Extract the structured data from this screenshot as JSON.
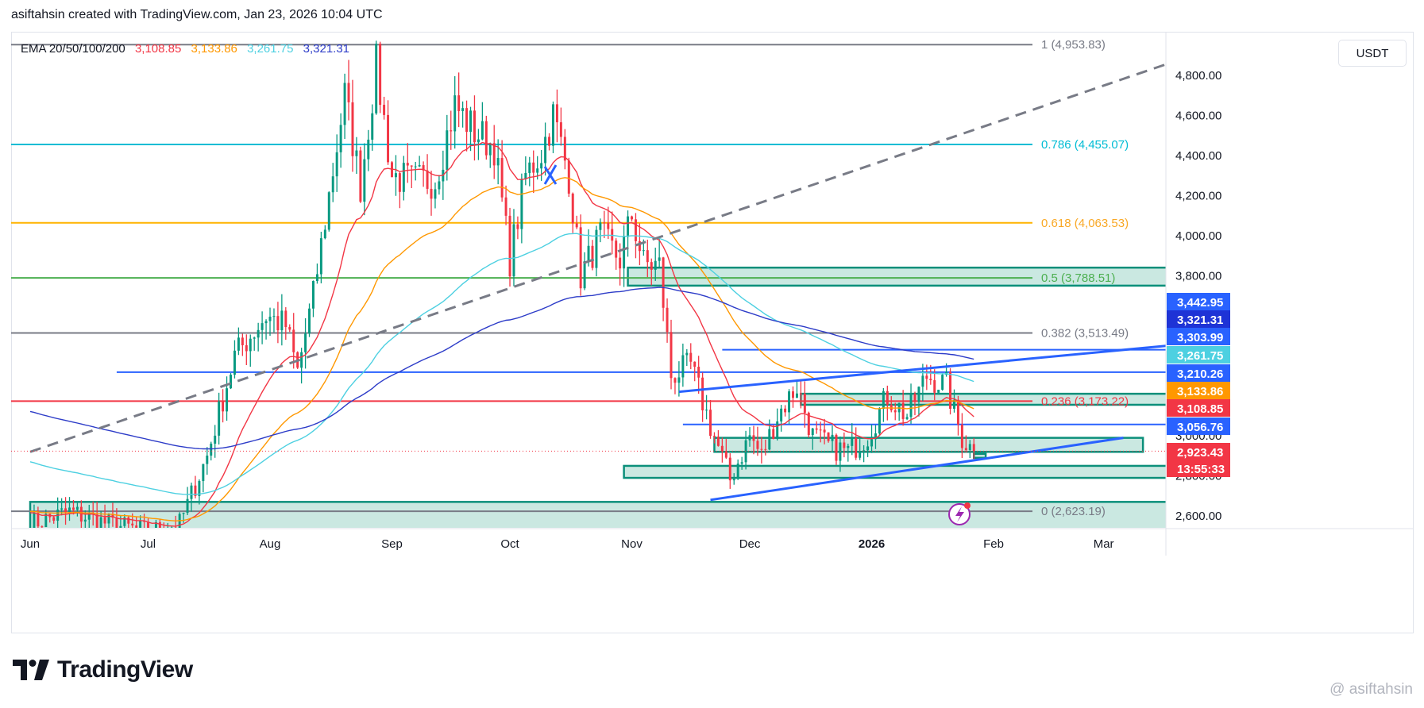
{
  "header": {
    "title": "asiftahsin created with TradingView.com, Jan 23, 2026 10:04 UTC"
  },
  "legend": {
    "label": "EMA 20/50/100/200",
    "values": [
      "3,108.85",
      "3,133.86",
      "3,261.75",
      "3,321.31"
    ],
    "colors": [
      "#f23645",
      "#ff9800",
      "#4dd0e1",
      "#2d3cc8"
    ]
  },
  "currency": "USDT",
  "logo": {
    "text": "TradingView"
  },
  "watermark": "@ asiftahsin",
  "colors": {
    "up": "#089981",
    "down": "#f23645",
    "zone_fill": "#9ed6c9",
    "zone_border": "#0b8f7a",
    "trend_blue": "#2962ff",
    "grid_text": "#131722"
  },
  "chart_data": {
    "type": "candlestick",
    "ylim": [
      2520,
      5000
    ],
    "price_ticks": [
      {
        "value": 4800,
        "label": "4,800.00"
      },
      {
        "value": 4600,
        "label": "4,600.00"
      },
      {
        "value": 4400,
        "label": "4,400.00"
      },
      {
        "value": 4200,
        "label": "4,200.00"
      },
      {
        "value": 4000,
        "label": "4,000.00"
      },
      {
        "value": 3800,
        "label": "3,800.00"
      },
      {
        "value": 3000,
        "label": "3,000.00"
      },
      {
        "value": 2800,
        "label": "2,800.00"
      },
      {
        "value": 2600,
        "label": "2,600.00"
      }
    ],
    "time_labels": [
      {
        "day": 0,
        "label": "Jun"
      },
      {
        "day": 30,
        "label": "Jul"
      },
      {
        "day": 61,
        "label": "Aug"
      },
      {
        "day": 92,
        "label": "Sep"
      },
      {
        "day": 122,
        "label": "Oct"
      },
      {
        "day": 153,
        "label": "Nov"
      },
      {
        "day": 183,
        "label": "Dec"
      },
      {
        "day": 214,
        "label": "2026"
      },
      {
        "day": 245,
        "label": "Feb"
      },
      {
        "day": 273,
        "label": "Mar"
      }
    ],
    "fib_levels": [
      {
        "ratio": "1",
        "price": 4953.83,
        "label": "1 (4,953.83)",
        "color": "#787b86"
      },
      {
        "ratio": "0.786",
        "price": 4455.07,
        "label": "0.786 (4,455.07)",
        "color": "#00bcd4"
      },
      {
        "ratio": "0.618",
        "price": 4063.53,
        "label": "0.618 (4,063.53)",
        "color": "#ffb300"
      },
      {
        "ratio": "0.5",
        "price": 3788.51,
        "label": "0.5 (3,788.51)",
        "color": "#4caf50"
      },
      {
        "ratio": "0.382",
        "price": 3513.49,
        "label": "0.382 (3,513.49)",
        "color": "#787b86"
      },
      {
        "ratio": "0.236",
        "price": 3173.22,
        "label": "0.236 (3,173.22)",
        "color": "#f23645"
      },
      {
        "ratio": "0",
        "price": 2623.19,
        "label": "0 (2,623.19)",
        "color": "#787b86"
      }
    ],
    "price_badges": [
      {
        "label": "3,442.95",
        "color": "#2962ff",
        "text": "#ffffff"
      },
      {
        "label": "3,321.31",
        "color": "#1e33d6",
        "text": "#ffffff"
      },
      {
        "label": "3,303.99",
        "color": "#2962ff",
        "text": "#ffffff"
      },
      {
        "label": "3,261.75",
        "color": "#4dd0e1",
        "text": "#ffffff"
      },
      {
        "label": "3,210.26",
        "color": "#2962ff",
        "text": "#ffffff"
      },
      {
        "label": "3,133.86",
        "color": "#ff9800",
        "text": "#ffffff"
      },
      {
        "label": "3,108.85",
        "color": "#f23645",
        "text": "#ffffff"
      },
      {
        "label": "3,056.76",
        "color": "#2962ff",
        "text": "#ffffff"
      },
      {
        "label": "2,923.43",
        "color": "#f23645",
        "text": "#ffffff"
      },
      {
        "label": "13:55:33",
        "color": "#f23645",
        "text": "#ffffff"
      }
    ],
    "horizontal_lines": [
      {
        "price": 3430,
        "day_from": 176,
        "day_to": 300
      },
      {
        "price": 3318,
        "day_from": 22,
        "day_to": 300
      },
      {
        "price": 3056.76,
        "day_from": 166,
        "day_to": 300
      }
    ],
    "trend_lines": [
      {
        "day1": 0,
        "price1": 2920,
        "day2": 300,
        "price2": 4930,
        "style": "dashed"
      },
      {
        "day1": 165,
        "price1": 3220,
        "day2": 300,
        "price2": 3470,
        "style": "solid"
      },
      {
        "day1": 173,
        "price1": 2680,
        "day2": 278,
        "price2": 2990,
        "style": "solid"
      }
    ],
    "zones": [
      {
        "day_from": 152,
        "day_to": 300,
        "top": 3840,
        "bottom": 3750
      },
      {
        "day_from": 196,
        "day_to": 300,
        "top": 3210,
        "bottom": 3155
      },
      {
        "day_from": 174,
        "day_to": 283,
        "top": 2990,
        "bottom": 2920
      },
      {
        "day_from": 151,
        "day_to": 296,
        "top": 2850,
        "bottom": 2790
      },
      {
        "day_from": 0,
        "day_to": 300,
        "top": 2670,
        "bottom": 2520
      },
      {
        "day_from": 240,
        "day_to": 243,
        "top": 2910,
        "bottom": 2890
      }
    ],
    "anchors": [
      {
        "day": 0,
        "price": 2560
      },
      {
        "day": 10,
        "price": 2620
      },
      {
        "day": 20,
        "price": 2560
      },
      {
        "day": 30,
        "price": 2520
      },
      {
        "day": 38,
        "price": 2560
      },
      {
        "day": 45,
        "price": 2900
      },
      {
        "day": 52,
        "price": 3400
      },
      {
        "day": 60,
        "price": 3600
      },
      {
        "day": 65,
        "price": 3550
      },
      {
        "day": 68,
        "price": 3320
      },
      {
        "day": 72,
        "price": 3700
      },
      {
        "day": 76,
        "price": 4200
      },
      {
        "day": 80,
        "price": 4700
      },
      {
        "day": 84,
        "price": 4250
      },
      {
        "day": 88,
        "price": 4850
      },
      {
        "day": 92,
        "price": 4300
      },
      {
        "day": 97,
        "price": 4270
      },
      {
        "day": 103,
        "price": 4280
      },
      {
        "day": 108,
        "price": 4650
      },
      {
        "day": 113,
        "price": 4520
      },
      {
        "day": 118,
        "price": 4450
      },
      {
        "day": 122,
        "price": 3880
      },
      {
        "day": 126,
        "price": 4300
      },
      {
        "day": 130,
        "price": 4420
      },
      {
        "day": 133,
        "price": 4600
      },
      {
        "day": 137,
        "price": 4300
      },
      {
        "day": 140,
        "price": 3800
      },
      {
        "day": 145,
        "price": 4000
      },
      {
        "day": 150,
        "price": 3880
      },
      {
        "day": 153,
        "price": 4100
      },
      {
        "day": 156,
        "price": 3860
      },
      {
        "day": 160,
        "price": 3850
      },
      {
        "day": 163,
        "price": 3300
      },
      {
        "day": 168,
        "price": 3350
      },
      {
        "day": 173,
        "price": 3050
      },
      {
        "day": 178,
        "price": 2780
      },
      {
        "day": 183,
        "price": 3000
      },
      {
        "day": 186,
        "price": 2900
      },
      {
        "day": 190,
        "price": 3100
      },
      {
        "day": 195,
        "price": 3250
      },
      {
        "day": 199,
        "price": 3000
      },
      {
        "day": 203,
        "price": 2950
      },
      {
        "day": 208,
        "price": 2920
      },
      {
        "day": 213,
        "price": 3000
      },
      {
        "day": 218,
        "price": 3200
      },
      {
        "day": 223,
        "price": 3100
      },
      {
        "day": 228,
        "price": 3300
      },
      {
        "day": 233,
        "price": 3250
      },
      {
        "day": 237,
        "price": 2990
      },
      {
        "day": 240,
        "price": 2923
      }
    ],
    "ema": [
      {
        "name": "EMA 20",
        "value": 3108.85,
        "color": "#f23645",
        "span": 20
      },
      {
        "name": "EMA 50",
        "value": 3133.86,
        "color": "#ff9800",
        "span": 50
      },
      {
        "name": "EMA 100",
        "value": 3261.75,
        "color": "#4dd0e1",
        "span": 100
      },
      {
        "name": "EMA 200",
        "value": 3321.31,
        "color": "#2d3cc8",
        "span": 200
      }
    ]
  }
}
